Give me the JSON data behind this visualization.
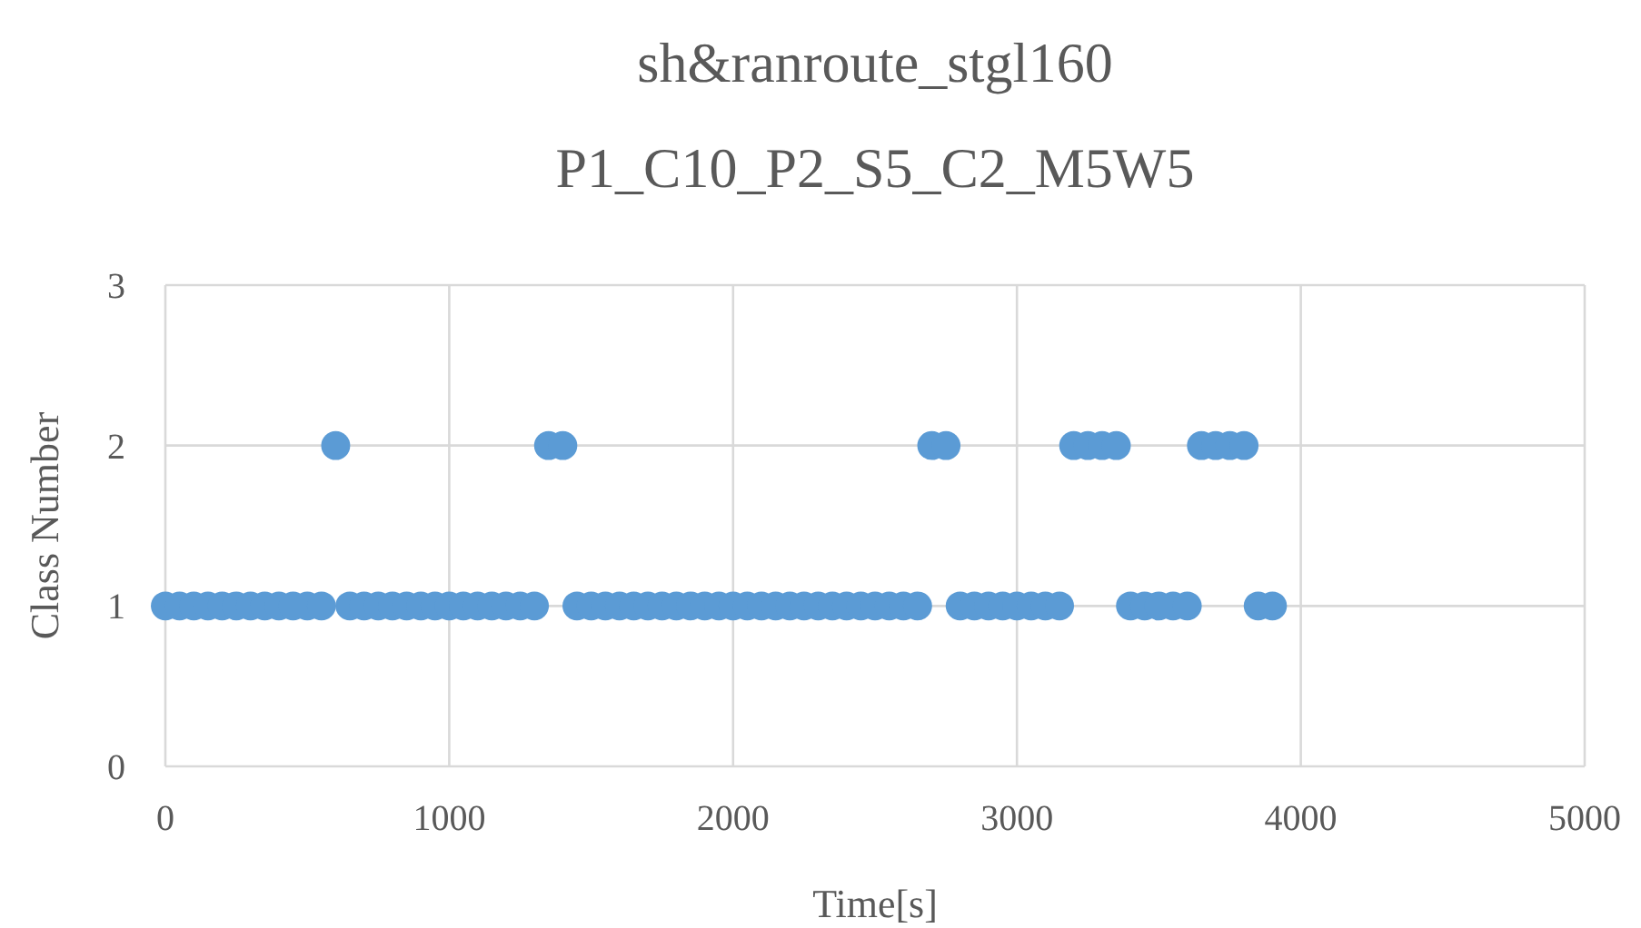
{
  "chart_data": {
    "type": "scatter",
    "title": "sh&ranroute_stgl160",
    "subtitle": "P1_C10_P2_S5_C2_M5W5",
    "xlabel": "Time[s]",
    "ylabel": "Class Number",
    "x": [
      0,
      50,
      100,
      150,
      200,
      250,
      300,
      350,
      400,
      450,
      500,
      550,
      600,
      650,
      700,
      750,
      800,
      850,
      900,
      950,
      1000,
      1050,
      1100,
      1150,
      1200,
      1250,
      1300,
      1350,
      1400,
      1450,
      1500,
      1550,
      1600,
      1650,
      1700,
      1750,
      1800,
      1850,
      1900,
      1950,
      2000,
      2050,
      2100,
      2150,
      2200,
      2250,
      2300,
      2350,
      2400,
      2450,
      2500,
      2550,
      2600,
      2650,
      2700,
      2750,
      2800,
      2850,
      2900,
      2950,
      3000,
      3050,
      3100,
      3150,
      3200,
      3250,
      3300,
      3350,
      3400,
      3450,
      3500,
      3550,
      3600,
      3650,
      3700,
      3750,
      3800,
      3850,
      3900
    ],
    "series": [
      {
        "color": "#5b9bd5",
        "values": [
          1,
          1,
          1,
          1,
          1,
          1,
          1,
          1,
          1,
          1,
          1,
          1,
          2,
          1,
          1,
          1,
          1,
          1,
          1,
          1,
          1,
          1,
          1,
          1,
          1,
          1,
          1,
          2,
          2,
          1,
          1,
          1,
          1,
          1,
          1,
          1,
          1,
          1,
          1,
          1,
          1,
          1,
          1,
          1,
          1,
          1,
          1,
          1,
          1,
          1,
          1,
          1,
          1,
          1,
          2,
          2,
          1,
          1,
          1,
          1,
          1,
          1,
          1,
          1,
          2,
          2,
          2,
          2,
          1,
          1,
          1,
          1,
          1,
          2,
          2,
          2,
          2,
          1,
          1
        ]
      }
    ],
    "xlim": [
      0,
      5000
    ],
    "xticks": [
      0,
      1000,
      2000,
      3000,
      4000,
      5000
    ],
    "ylim": [
      0,
      3
    ],
    "yticks": [
      0,
      1,
      2,
      3
    ],
    "grid": true,
    "marker": "circle"
  }
}
